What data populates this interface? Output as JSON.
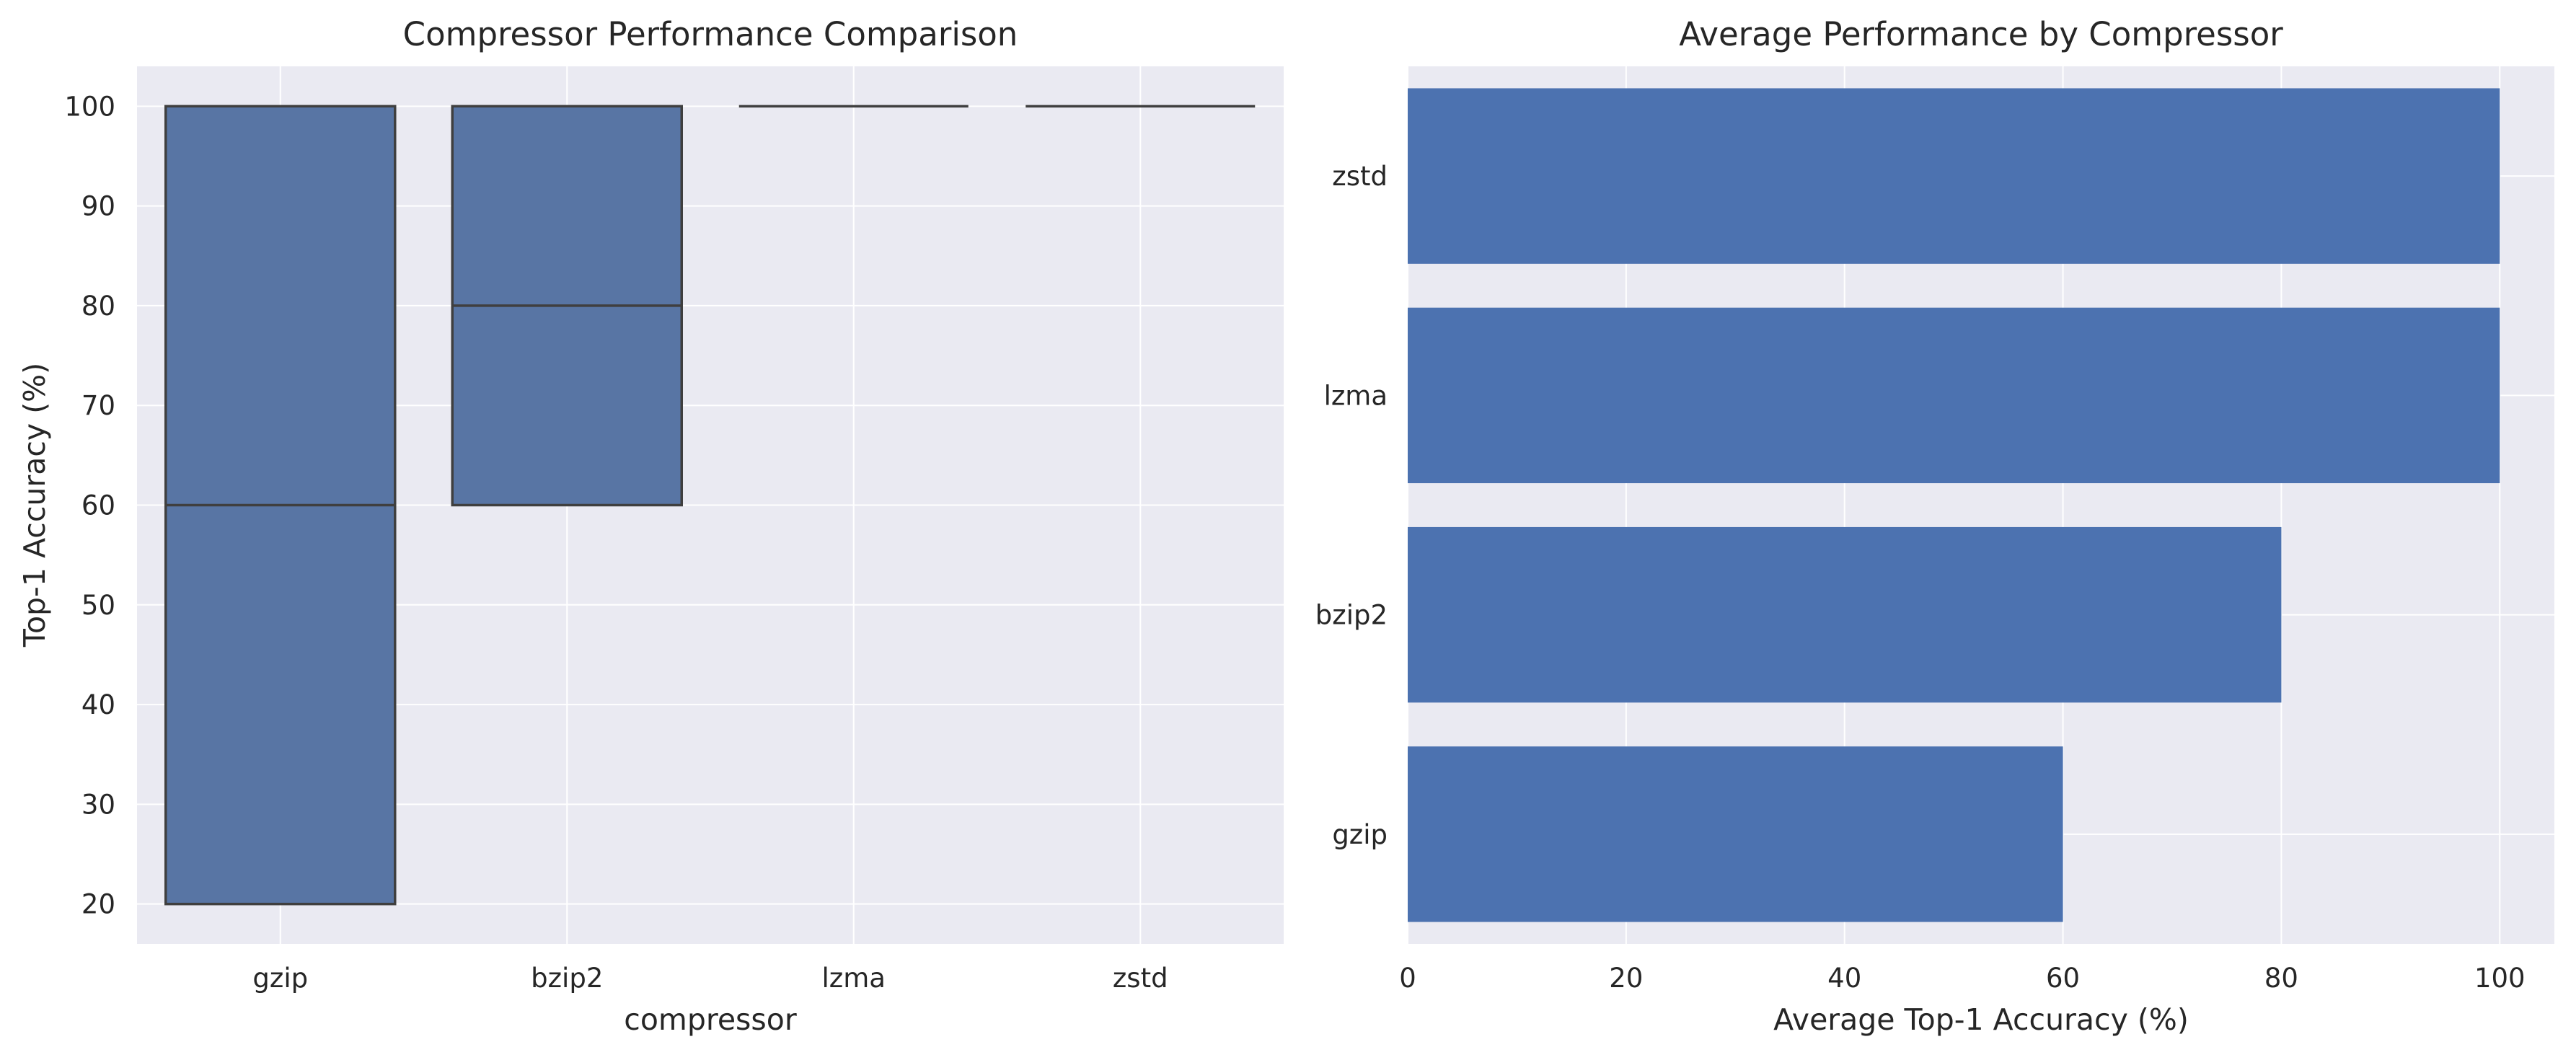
{
  "chart_data": [
    {
      "type": "box",
      "title": "Compressor Performance Comparison",
      "xlabel": "compressor",
      "ylabel": "Top-1 Accuracy (%)",
      "categories": [
        "gzip",
        "bzip2",
        "lzma",
        "zstd"
      ],
      "boxes": [
        {
          "category": "gzip",
          "q1": 20,
          "median": 60,
          "q3": 100
        },
        {
          "category": "bzip2",
          "q1": 60,
          "median": 80,
          "q3": 100
        },
        {
          "category": "lzma",
          "q1": 100,
          "median": 100,
          "q3": 100
        },
        {
          "category": "zstd",
          "q1": 100,
          "median": 100,
          "q3": 100
        }
      ],
      "ylim": [
        16,
        104
      ],
      "yticks": [
        20,
        30,
        40,
        50,
        60,
        70,
        80,
        90,
        100
      ],
      "grid": true,
      "color": "#5875a4"
    },
    {
      "type": "bar",
      "orientation": "horizontal",
      "title": "Average Performance by Compressor",
      "xlabel": "Average Top-1 Accuracy (%)",
      "ylabel": "",
      "categories": [
        "gzip",
        "bzip2",
        "lzma",
        "zstd"
      ],
      "values": [
        60,
        80,
        100,
        100
      ],
      "xlim": [
        0,
        105
      ],
      "xticks": [
        0,
        20,
        40,
        60,
        80,
        100
      ],
      "grid": true,
      "color": "#4c72b0"
    }
  ],
  "style": {
    "axes_background": "#eaeaf2",
    "grid_color": "#ffffff",
    "edge_color": "#3f3f3f"
  }
}
